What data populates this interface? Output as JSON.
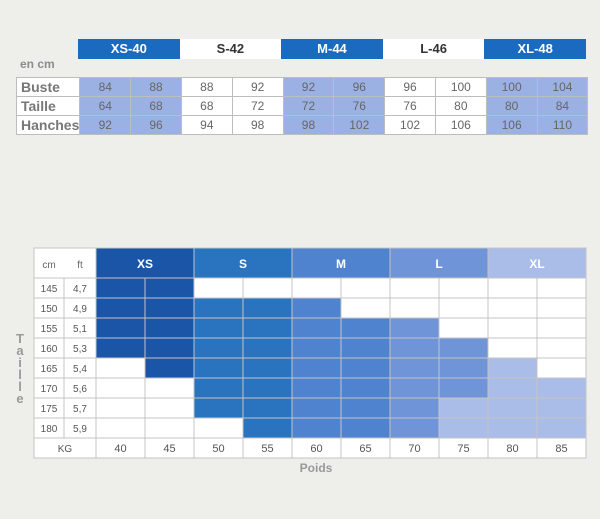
{
  "top_table": {
    "unit_label": "en cm",
    "sizes": [
      "XS-40",
      "S-42",
      "M-44",
      "L-46",
      "XL-48"
    ],
    "rows": [
      {
        "label": "Buste",
        "values": [
          84,
          88,
          88,
          92,
          92,
          96,
          96,
          100,
          100,
          104
        ]
      },
      {
        "label": "Taille",
        "values": [
          64,
          68,
          68,
          72,
          72,
          76,
          76,
          80,
          80,
          84
        ]
      },
      {
        "label": "Hanches",
        "values": [
          92,
          96,
          94,
          98,
          98,
          102,
          102,
          106,
          106,
          110
        ]
      }
    ]
  },
  "chart_data": {
    "type": "heatmap",
    "corner_labels": [
      "cm",
      "ft",
      "KG"
    ],
    "size_columns": [
      "XS",
      "S",
      "M",
      "L",
      "XL"
    ],
    "heights_cm": [
      "145",
      "150",
      "155",
      "160",
      "165",
      "170",
      "175",
      "180"
    ],
    "heights_ft": [
      "4,7",
      "4,9",
      "5,1",
      "5,3",
      "5,4",
      "5,6",
      "5,7",
      "5,9"
    ],
    "weights_kg": [
      "40",
      "45",
      "50",
      "55",
      "60",
      "65",
      "70",
      "75",
      "80",
      "85"
    ],
    "ylabel": "Taille",
    "xlabel": "Poids",
    "grid": [
      [
        "XS",
        "XS",
        "",
        "",
        "",
        "",
        "",
        "",
        "",
        ""
      ],
      [
        "XS",
        "XS",
        "S",
        "S",
        "M",
        "",
        "",
        "",
        "",
        ""
      ],
      [
        "XS",
        "XS",
        "S",
        "S",
        "M",
        "M",
        "L",
        "",
        "",
        ""
      ],
      [
        "XS",
        "XS",
        "S",
        "S",
        "M",
        "M",
        "L",
        "L",
        "",
        ""
      ],
      [
        "",
        "XS",
        "S",
        "S",
        "M",
        "M",
        "L",
        "L",
        "XL",
        ""
      ],
      [
        "",
        "",
        "S",
        "S",
        "M",
        "M",
        "L",
        "L",
        "XL",
        "XL"
      ],
      [
        "",
        "",
        "S",
        "S",
        "M",
        "M",
        "L",
        "XL",
        "XL",
        "XL"
      ],
      [
        "",
        "",
        "",
        "S",
        "M",
        "M",
        "L",
        "XL",
        "XL",
        "XL"
      ]
    ],
    "colors": {
      "XS": "#1a55a8",
      "S": "#2a74bf",
      "M": "#4f82cf",
      "L": "#6f95d8",
      "XL": "#aabde8",
      "empty": "#ffffff",
      "border": "#c4c4c4"
    }
  }
}
